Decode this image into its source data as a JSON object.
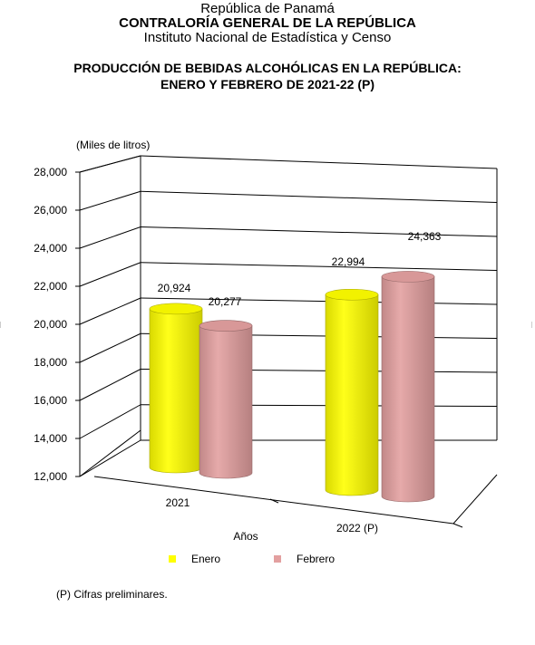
{
  "header": {
    "country": "República de Panamá",
    "institution": "CONTRALORÍA GENERAL DE LA REPÚBLICA",
    "institute": "Instituto Nacional de Estadística y Censo"
  },
  "chart_data": {
    "type": "bar",
    "title": "PRODUCCIÓN DE BEBIDAS ALCOHÓLICAS EN LA REPÚBLICA:",
    "subtitle": "ENERO Y FEBRERO DE 2021-22 (P)",
    "ylabel": "(Miles de litros)",
    "xlabel": "Años",
    "categories": [
      "2021",
      "2022 (P)"
    ],
    "series": [
      {
        "name": "Enero",
        "values": [
          20924,
          22994
        ],
        "color": "#ffff00",
        "labels": [
          "20,924",
          "22,994"
        ]
      },
      {
        "name": "Febrero",
        "values": [
          20277,
          24363
        ],
        "color": "#e3a0a0",
        "labels": [
          "20,277",
          "24,363"
        ]
      }
    ],
    "yticks": [
      "12,000",
      "14,000",
      "16,000",
      "18,000",
      "20,000",
      "22,000",
      "24,000",
      "26,000",
      "28,000"
    ],
    "ylim": [
      12000,
      28000
    ],
    "grid": true,
    "legend_position": "bottom",
    "note": "(P) Cifras preliminares."
  }
}
